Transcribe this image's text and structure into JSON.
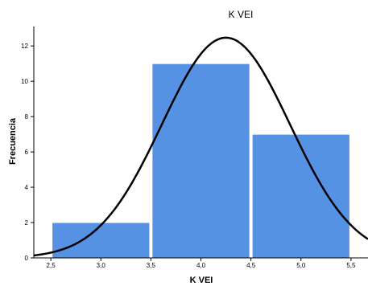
{
  "chart_data": {
    "type": "bar",
    "title": "K VEI",
    "xlabel": "K VEI",
    "ylabel": "Frecuencia",
    "x_ticks": [
      "2,5",
      "3,0",
      "3,5",
      "4,0",
      "4,5",
      "5,0",
      "5,5"
    ],
    "x_tick_values": [
      2.5,
      3.0,
      3.5,
      4.0,
      4.5,
      5.0,
      5.5
    ],
    "y_ticks": [
      "0",
      "2",
      "4",
      "6",
      "8",
      "10",
      "12"
    ],
    "y_tick_values": [
      0,
      2,
      4,
      6,
      8,
      10,
      12
    ],
    "xlim": [
      2.33,
      5.67
    ],
    "ylim": [
      0,
      13.1
    ],
    "bins": [
      {
        "start": 2.5,
        "end": 3.5,
        "value": 2
      },
      {
        "start": 3.5,
        "end": 4.5,
        "value": 11
      },
      {
        "start": 4.5,
        "end": 5.5,
        "value": 7
      }
    ],
    "normal_curve": {
      "mean": 4.25,
      "std": 0.64,
      "n": 20,
      "bin_width": 1.0
    },
    "colors": {
      "bar": "#5592e4",
      "bar_edge": "#ffffff",
      "curve": "#000000",
      "grid": "#000000"
    },
    "grid": false,
    "legend": "none"
  }
}
